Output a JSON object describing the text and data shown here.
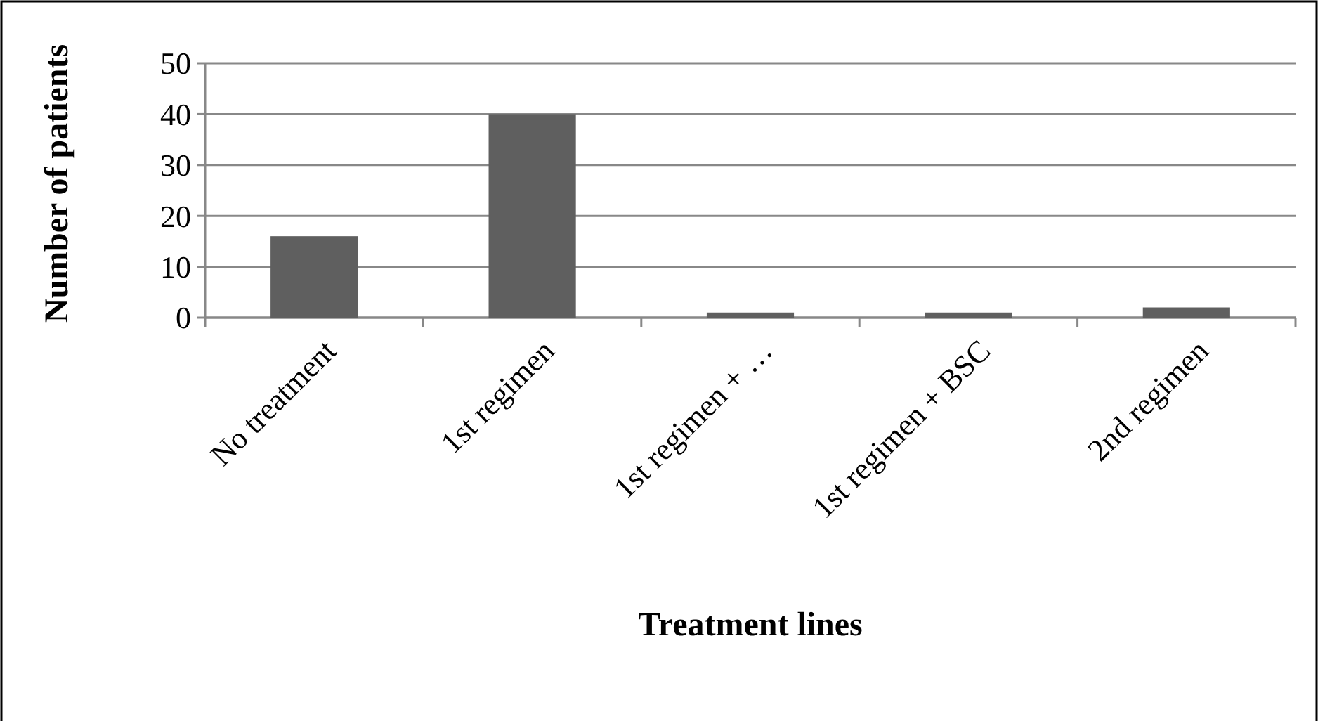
{
  "chart_data": {
    "type": "bar",
    "categories": [
      "No treatment",
      "1st regimen",
      "1st regimen + …",
      "1st regimen + BSC",
      "2nd regimen"
    ],
    "values": [
      16,
      40,
      1,
      1,
      2
    ],
    "color": "#5f5f5f",
    "xlabel": "Treatment lines",
    "ylabel": "Number of patients",
    "ylim": [
      0,
      50
    ],
    "yticks": [
      0,
      10,
      20,
      30,
      40,
      50
    ],
    "grid": "y"
  }
}
